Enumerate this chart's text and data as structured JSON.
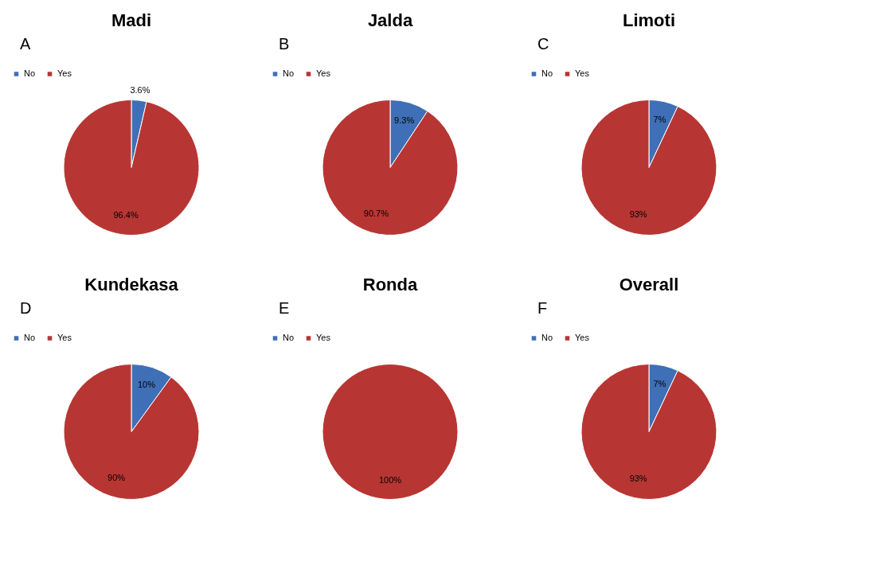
{
  "chart_data": [
    {
      "type": "pie",
      "title": "Madi",
      "annotations": [
        "A"
      ],
      "categories": [
        "No",
        "Yes"
      ],
      "values": [
        3.6,
        96.4
      ],
      "colors": [
        "#3f6fb6",
        "#b73633"
      ],
      "value_labels": [
        "3.6%",
        "96.4%"
      ],
      "legend": "top"
    },
    {
      "type": "pie",
      "title": "Jalda",
      "annotations": [
        "B"
      ],
      "categories": [
        "No",
        "Yes"
      ],
      "values": [
        9.3,
        90.7
      ],
      "colors": [
        "#3f6fb6",
        "#b73633"
      ],
      "value_labels": [
        "9.3%",
        "90.7%"
      ],
      "legend": "top"
    },
    {
      "type": "pie",
      "title": "Limoti",
      "annotations": [
        "C"
      ],
      "categories": [
        "No",
        "Yes"
      ],
      "values": [
        7,
        93
      ],
      "colors": [
        "#3f6fb6",
        "#b73633"
      ],
      "value_labels": [
        "7%",
        "93%"
      ],
      "legend": "top"
    },
    {
      "type": "pie",
      "title": "Kundekasa",
      "annotations": [
        "D"
      ],
      "categories": [
        "No",
        "Yes"
      ],
      "values": [
        10,
        90
      ],
      "colors": [
        "#3f6fb6",
        "#b73633"
      ],
      "value_labels": [
        "10%",
        "90%"
      ],
      "legend": "top"
    },
    {
      "type": "pie",
      "title": "Ronda",
      "annotations": [
        "E"
      ],
      "categories": [
        "No",
        "Yes"
      ],
      "values": [
        0,
        100
      ],
      "colors": [
        "#3f6fb6",
        "#b73633"
      ],
      "value_labels": [
        null,
        "100%"
      ],
      "legend": "top"
    },
    {
      "type": "pie",
      "title": "Overall",
      "annotations": [
        "F"
      ],
      "categories": [
        "No",
        "Yes"
      ],
      "values": [
        7,
        93
      ],
      "colors": [
        "#3f6fb6",
        "#b73633"
      ],
      "value_labels": [
        "7%",
        "93%"
      ],
      "legend": "top"
    }
  ]
}
